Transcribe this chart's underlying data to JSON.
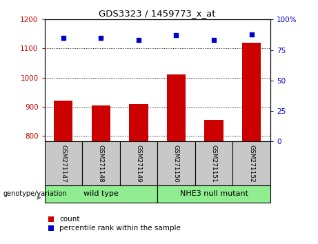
{
  "title": "GDS3323 / 1459773_x_at",
  "samples": [
    "GSM271147",
    "GSM271148",
    "GSM271149",
    "GSM271150",
    "GSM271151",
    "GSM271152"
  ],
  "counts": [
    920,
    905,
    908,
    1010,
    855,
    1120
  ],
  "percentile_ranks": [
    85,
    85,
    83,
    87,
    83,
    88
  ],
  "ylim_left": [
    780,
    1200
  ],
  "ylim_right": [
    0,
    100
  ],
  "yticks_left": [
    800,
    900,
    1000,
    1100,
    1200
  ],
  "yticks_right": [
    0,
    25,
    50,
    75,
    100
  ],
  "bar_color": "#cc0000",
  "dot_color": "#0000cc",
  "group_box_color": "#c8c8c8",
  "group1_label": "wild type",
  "group2_label": "NHE3 null mutant",
  "group_color": "#90ee90",
  "genotype_label": "genotype/variation",
  "legend_count_label": "count",
  "legend_percentile_label": "percentile rank within the sample",
  "bar_width": 0.5,
  "left_tick_color": "#cc0000",
  "right_tick_color": "#0000cc"
}
